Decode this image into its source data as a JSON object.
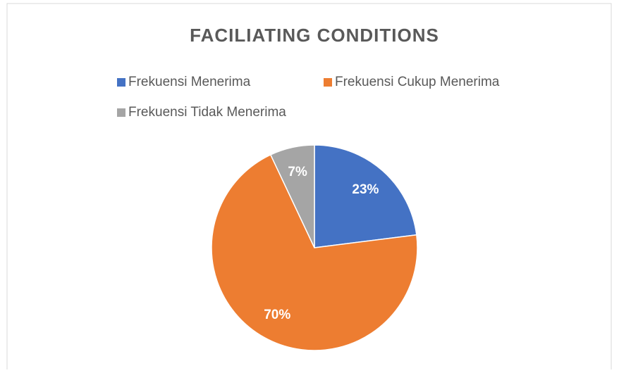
{
  "chart_data": {
    "type": "pie",
    "title": "FACILIATING CONDITIONS",
    "categories": [
      "Frekuensi Menerima",
      "Frekuensi Cukup Menerima",
      "Frekuensi Tidak Menerima"
    ],
    "values": [
      23,
      70,
      7
    ],
    "value_labels": [
      "23%",
      "70%",
      "7%"
    ],
    "colors": [
      "#4472c4",
      "#ed7d31",
      "#a5a5a5"
    ]
  }
}
